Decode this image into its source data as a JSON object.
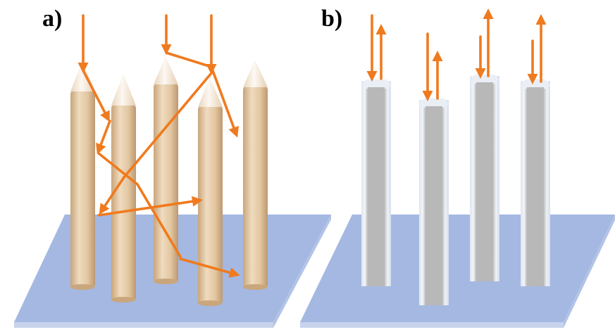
{
  "panels": {
    "a": {
      "label": "a)"
    },
    "b": {
      "label": "b)"
    }
  },
  "colors": {
    "substrate_top": "#a4b8e2",
    "substrate_front": "#c7d2ec",
    "substrate_side": "#b3c3e6",
    "arrow": "#f07a1e",
    "wood_light": "#f0dcc0",
    "wood_mid": "#dcbc93",
    "wood_dark": "#b89268",
    "tip_light": "#fbf3ea",
    "pillar_face": "#b9b9b9",
    "pillar_face_dark": "#a5a5a5",
    "pillar_frame": "#e4e9f2"
  },
  "icons": {
    "tapered_rod": "pencil-shaped-nanowire-icon",
    "flat_pillar": "hexagonal-pillar-icon",
    "light_ray": "arrow-icon"
  }
}
